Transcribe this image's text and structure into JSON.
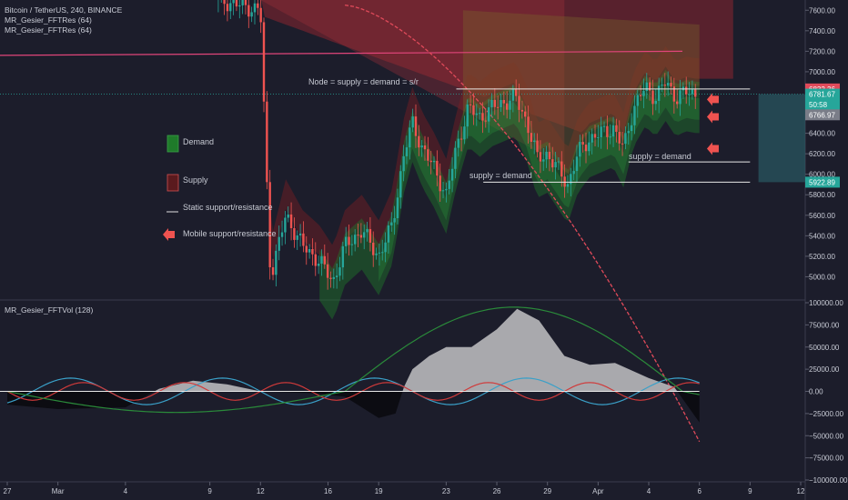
{
  "header": {
    "symbol_line": "Bitcoin / TetherUS, 240, BINANCE",
    "indicator_1": "MR_Gesier_FFTRes (64)",
    "indicator_2": "MR_Gesier_FFTRes (64)",
    "lower_indicator": "MR_Gesier_FFTVol (128)"
  },
  "legend": {
    "demand": "Demand",
    "supply": "Supply",
    "static": "Static support/resistance",
    "mobile": "Mobile support/resistance"
  },
  "annotations": {
    "node": "Node = supply = demand = s/r",
    "sd_left": "supply = demand",
    "sd_right": "supply = demand"
  },
  "price_badges": [
    {
      "label": "6832.36",
      "value": 6832.36,
      "color": "#e04a5a"
    },
    {
      "label": "6781.67",
      "value": 6781.67,
      "color": "#26a69a"
    },
    {
      "label": "50:58",
      "value": 6680,
      "color": "#26a69a"
    },
    {
      "label": "6766.97",
      "value": 6580,
      "color": "#7a7d88"
    },
    {
      "label": "5922.89",
      "value": 5922.89,
      "color": "#26a69a"
    }
  ],
  "colors": {
    "demand": "#1f7a2a",
    "supply": "#7a1f24",
    "bull": "#26a69a",
    "bear": "#ef5350",
    "arrow": "#ef5350"
  },
  "chart_data": [
    {
      "type": "candlestick",
      "title": "Bitcoin / TetherUS, 240, BINANCE",
      "ylim": [
        4800,
        7700
      ],
      "y_ticks": [
        5000,
        5200,
        5400,
        5600,
        5800,
        6000,
        6200,
        6400,
        6600,
        6800,
        7000,
        7200,
        7400,
        7600
      ],
      "y_tick_labels": [
        "5000.00",
        "5200.00",
        "5400.00",
        "5600.00",
        "5800.00",
        "6000.00",
        "6200.00",
        "6400.00",
        "6600.00",
        "6800.00",
        "7000.00",
        "7200.00",
        "7400.00",
        "7600.00"
      ],
      "x_tick_labels": [
        "27",
        "Mar",
        "4",
        "9",
        "12",
        "16",
        "19",
        "23",
        "26",
        "29",
        "Apr",
        "4",
        "6",
        "9",
        "12"
      ],
      "x_tick_days": [
        -3,
        0,
        4,
        9,
        12,
        16,
        19,
        23,
        26,
        29,
        32,
        35,
        38,
        41,
        44
      ],
      "close_series": [
        {
          "day": 9.5,
          "close": 7700
        },
        {
          "day": 12.0,
          "close": 7600
        },
        {
          "day": 12.3,
          "close": 6200
        },
        {
          "day": 12.6,
          "close": 5000
        },
        {
          "day": 13.5,
          "close": 5600
        },
        {
          "day": 14.5,
          "close": 5300
        },
        {
          "day": 15.5,
          "close": 5150
        },
        {
          "day": 16.3,
          "close": 4950
        },
        {
          "day": 17.0,
          "close": 5300
        },
        {
          "day": 18.0,
          "close": 5450
        },
        {
          "day": 19.0,
          "close": 5200
        },
        {
          "day": 19.8,
          "close": 5500
        },
        {
          "day": 20.5,
          "close": 6200
        },
        {
          "day": 21.0,
          "close": 6500
        },
        {
          "day": 21.6,
          "close": 6250
        },
        {
          "day": 22.3,
          "close": 6050
        },
        {
          "day": 23.0,
          "close": 5800
        },
        {
          "day": 23.6,
          "close": 6250
        },
        {
          "day": 24.3,
          "close": 6650
        },
        {
          "day": 25.0,
          "close": 6550
        },
        {
          "day": 25.7,
          "close": 6650
        },
        {
          "day": 26.4,
          "close": 6700
        },
        {
          "day": 27.1,
          "close": 6750
        },
        {
          "day": 27.8,
          "close": 6500
        },
        {
          "day": 28.4,
          "close": 6150
        },
        {
          "day": 29.0,
          "close": 6200
        },
        {
          "day": 29.6,
          "close": 6050
        },
        {
          "day": 30.2,
          "close": 5900
        },
        {
          "day": 30.8,
          "close": 6200
        },
        {
          "day": 31.5,
          "close": 6350
        },
        {
          "day": 32.2,
          "close": 6400
        },
        {
          "day": 32.9,
          "close": 6450
        },
        {
          "day": 33.5,
          "close": 6250
        },
        {
          "day": 34.1,
          "close": 6650
        },
        {
          "day": 34.8,
          "close": 6850
        },
        {
          "day": 35.4,
          "close": 6750
        },
        {
          "day": 36.0,
          "close": 6900
        },
        {
          "day": 36.6,
          "close": 6750
        },
        {
          "day": 37.2,
          "close": 6800
        },
        {
          "day": 37.8,
          "close": 6781.67
        }
      ],
      "static_levels": [
        {
          "label": "node",
          "value": 6832.36,
          "from_day": 23.6,
          "to_day": 41.0
        },
        {
          "label": "right",
          "value": 6120,
          "from_day": 33.8,
          "to_day": 41.0
        },
        {
          "label": "left",
          "value": 5922.89,
          "from_day": 25.2,
          "to_day": 41.0
        }
      ]
    },
    {
      "type": "area",
      "title": "MR_Gesier_FFTVol (128)",
      "ylim": [
        -100000,
        100000
      ],
      "y_ticks": [
        -100000,
        -75000,
        -50000,
        -25000,
        0,
        25000,
        50000,
        75000,
        100000
      ],
      "y_tick_labels": [
        "−100000.00",
        "−75000.00",
        "−50000.00",
        "−25000.00",
        "0.00",
        "25000.00",
        "50000.00",
        "75000.00",
        "100000.00"
      ],
      "volume_envelope": [
        {
          "day": -3.0,
          "value": -15000
        },
        {
          "day": 0.0,
          "value": -20000
        },
        {
          "day": 4.0,
          "value": -18000
        },
        {
          "day": 6.0,
          "value": 3000
        },
        {
          "day": 8.0,
          "value": 12000
        },
        {
          "day": 10.0,
          "value": 8000
        },
        {
          "day": 12.0,
          "value": 0
        },
        {
          "day": 15.0,
          "value": -2000
        },
        {
          "day": 17.0,
          "value": -6000
        },
        {
          "day": 19.0,
          "value": -30000
        },
        {
          "day": 20.0,
          "value": -25000
        },
        {
          "day": 20.5,
          "value": 5000
        },
        {
          "day": 21.0,
          "value": 25000
        },
        {
          "day": 22.0,
          "value": 40000
        },
        {
          "day": 23.0,
          "value": 50000
        },
        {
          "day": 24.5,
          "value": 50000
        },
        {
          "day": 26.0,
          "value": 70000
        },
        {
          "day": 27.2,
          "value": 93000
        },
        {
          "day": 28.5,
          "value": 80000
        },
        {
          "day": 30.0,
          "value": 40000
        },
        {
          "day": 31.5,
          "value": 30000
        },
        {
          "day": 33.0,
          "value": 32000
        },
        {
          "day": 35.0,
          "value": 15000
        },
        {
          "day": 36.5,
          "value": 5000
        },
        {
          "day": 38.0,
          "value": -35000
        }
      ]
    }
  ]
}
